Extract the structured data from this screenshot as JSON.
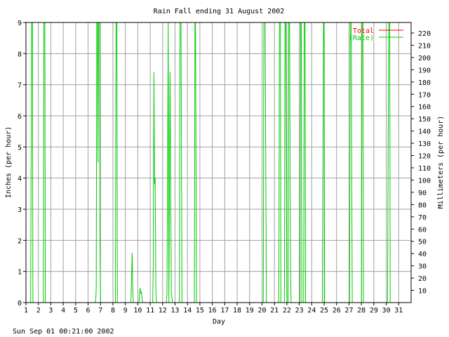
{
  "chart_data": {
    "type": "line",
    "title": "Rain Fall ending 31 August 2002",
    "xlabel": "Day",
    "ylabel_left": "Inches (per hour)",
    "ylabel_right": "Millimeters (per hour)",
    "timestamp": "Sun Sep 01 00:21:00 2002",
    "xlim": [
      1,
      32
    ],
    "ylim": [
      0,
      9
    ],
    "y2lim": [
      0,
      228.6
    ],
    "x_ticks": [
      1,
      2,
      3,
      4,
      5,
      6,
      7,
      8,
      9,
      10,
      11,
      12,
      13,
      14,
      15,
      16,
      17,
      18,
      19,
      20,
      21,
      22,
      23,
      24,
      25,
      26,
      27,
      28,
      29,
      30,
      31
    ],
    "y_ticks": [
      0,
      1,
      2,
      3,
      4,
      5,
      6,
      7,
      8,
      9
    ],
    "y2_ticks": [
      10,
      20,
      30,
      40,
      50,
      60,
      70,
      80,
      90,
      100,
      110,
      120,
      130,
      140,
      150,
      160,
      170,
      180,
      190,
      200,
      210,
      220
    ],
    "grid": true,
    "legend_position": "top-right",
    "colors": {
      "total": "#ff0000",
      "rate": "#00cc00",
      "grid": "#a0a0a0",
      "axes": "#000000"
    },
    "series": [
      {
        "name": "Total",
        "color": "#ff0000",
        "points": []
      },
      {
        "name": "(Rate)",
        "color": "#00cc00",
        "points": [
          [
            1.0,
            0
          ],
          [
            1.38,
            0
          ],
          [
            1.42,
            4.5
          ],
          [
            1.46,
            9
          ],
          [
            1.5,
            9
          ],
          [
            1.52,
            9
          ],
          [
            1.56,
            0
          ],
          [
            2.4,
            0
          ],
          [
            2.44,
            9
          ],
          [
            2.52,
            9
          ],
          [
            2.56,
            0
          ],
          [
            6.55,
            0
          ],
          [
            6.62,
            0.1
          ],
          [
            6.66,
            0.5
          ],
          [
            6.7,
            9
          ],
          [
            6.76,
            9
          ],
          [
            6.8,
            4.5
          ],
          [
            6.84,
            9
          ],
          [
            6.92,
            9
          ],
          [
            6.96,
            2.0
          ],
          [
            7.0,
            0
          ],
          [
            8.2,
            0
          ],
          [
            8.25,
            9
          ],
          [
            8.32,
            9
          ],
          [
            8.36,
            0
          ],
          [
            9.45,
            0
          ],
          [
            9.5,
            0.8
          ],
          [
            9.55,
            1.6
          ],
          [
            9.6,
            0.3
          ],
          [
            9.65,
            0
          ],
          [
            10.1,
            0
          ],
          [
            10.15,
            0.4
          ],
          [
            10.2,
            0.45
          ],
          [
            10.25,
            0.3
          ],
          [
            10.3,
            0.35
          ],
          [
            10.35,
            0.1
          ],
          [
            10.4,
            0
          ],
          [
            11.2,
            0
          ],
          [
            11.25,
            1.2
          ],
          [
            11.3,
            7.4
          ],
          [
            11.35,
            3.8
          ],
          [
            11.4,
            4.0
          ],
          [
            11.45,
            0.5
          ],
          [
            11.5,
            0
          ],
          [
            12.3,
            0
          ],
          [
            12.35,
            0.3
          ],
          [
            12.4,
            4.5
          ],
          [
            12.45,
            9
          ],
          [
            12.5,
            0
          ],
          [
            12.6,
            7.4
          ],
          [
            12.65,
            3.8
          ],
          [
            12.7,
            0.3
          ],
          [
            12.75,
            0.15
          ],
          [
            12.8,
            0
          ],
          [
            13.35,
            0
          ],
          [
            13.4,
            9
          ],
          [
            13.48,
            9
          ],
          [
            13.52,
            4.5
          ],
          [
            13.56,
            0
          ],
          [
            14.55,
            0
          ],
          [
            14.6,
            9
          ],
          [
            14.64,
            9
          ],
          [
            14.68,
            5.2
          ],
          [
            14.72,
            0
          ],
          [
            20.1,
            0
          ],
          [
            20.15,
            9
          ],
          [
            20.25,
            9
          ],
          [
            20.3,
            4.5
          ],
          [
            20.35,
            0
          ],
          [
            21.35,
            0
          ],
          [
            21.4,
            9
          ],
          [
            21.48,
            9
          ],
          [
            21.52,
            0
          ],
          [
            21.8,
            0
          ],
          [
            21.85,
            9
          ],
          [
            21.92,
            9
          ],
          [
            21.96,
            3.8
          ],
          [
            22.0,
            0
          ],
          [
            22.1,
            0
          ],
          [
            22.15,
            9
          ],
          [
            22.22,
            9
          ],
          [
            22.26,
            3.8
          ],
          [
            22.3,
            1.0
          ],
          [
            22.34,
            0
          ],
          [
            23.05,
            0
          ],
          [
            23.1,
            9
          ],
          [
            23.16,
            9
          ],
          [
            23.2,
            0
          ],
          [
            23.35,
            0
          ],
          [
            23.4,
            9
          ],
          [
            23.46,
            9
          ],
          [
            23.5,
            0
          ],
          [
            24.85,
            0
          ],
          [
            24.9,
            4.5
          ],
          [
            24.95,
            9
          ],
          [
            25.0,
            9
          ],
          [
            25.04,
            0
          ],
          [
            27.05,
            0
          ],
          [
            27.1,
            9
          ],
          [
            27.18,
            9
          ],
          [
            27.22,
            4.5
          ],
          [
            27.26,
            0
          ],
          [
            28.0,
            0
          ],
          [
            28.05,
            9
          ],
          [
            28.12,
            9
          ],
          [
            28.16,
            0
          ],
          [
            30.1,
            0
          ],
          [
            30.15,
            4.5
          ],
          [
            30.2,
            9
          ],
          [
            30.28,
            9
          ],
          [
            30.32,
            0
          ],
          [
            32.0,
            0
          ]
        ]
      }
    ]
  }
}
